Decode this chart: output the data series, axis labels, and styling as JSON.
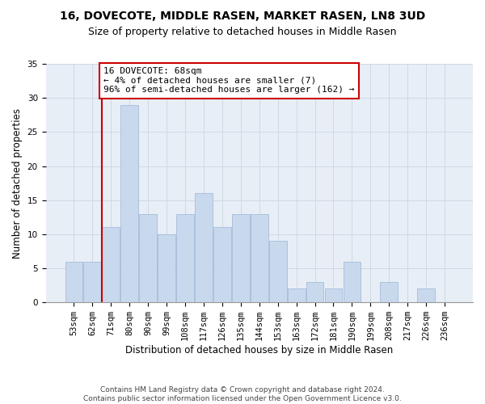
{
  "title": "16, DOVECOTE, MIDDLE RASEN, MARKET RASEN, LN8 3UD",
  "subtitle": "Size of property relative to detached houses in Middle Rasen",
  "xlabel": "Distribution of detached houses by size in Middle Rasen",
  "ylabel": "Number of detached properties",
  "bar_color": "#c8d9ee",
  "bar_edge_color": "#9ab4d4",
  "grid_color": "#d0d8e4",
  "bg_color": "#e8eef6",
  "categories": [
    "53sqm",
    "62sqm",
    "71sqm",
    "80sqm",
    "90sqm",
    "99sqm",
    "108sqm",
    "117sqm",
    "126sqm",
    "135sqm",
    "144sqm",
    "153sqm",
    "163sqm",
    "172sqm",
    "181sqm",
    "190sqm",
    "199sqm",
    "208sqm",
    "217sqm",
    "226sqm",
    "236sqm"
  ],
  "values": [
    6,
    6,
    11,
    29,
    13,
    10,
    13,
    16,
    11,
    13,
    13,
    9,
    2,
    3,
    2,
    6,
    0,
    3,
    0,
    2,
    0
  ],
  "vline_color": "#cc0000",
  "annotation_text": "16 DOVECOTE: 68sqm\n← 4% of detached houses are smaller (7)\n96% of semi-detached houses are larger (162) →",
  "annotation_box_color": "#ffffff",
  "annotation_box_edge_color": "#cc0000",
  "ylim": [
    0,
    35
  ],
  "yticks": [
    0,
    5,
    10,
    15,
    20,
    25,
    30,
    35
  ],
  "footer": "Contains HM Land Registry data © Crown copyright and database right 2024.\nContains public sector information licensed under the Open Government Licence v3.0.",
  "title_fontsize": 10,
  "subtitle_fontsize": 9,
  "xlabel_fontsize": 8.5,
  "ylabel_fontsize": 8.5,
  "tick_fontsize": 7.5,
  "annotation_fontsize": 8,
  "footer_fontsize": 6.5
}
